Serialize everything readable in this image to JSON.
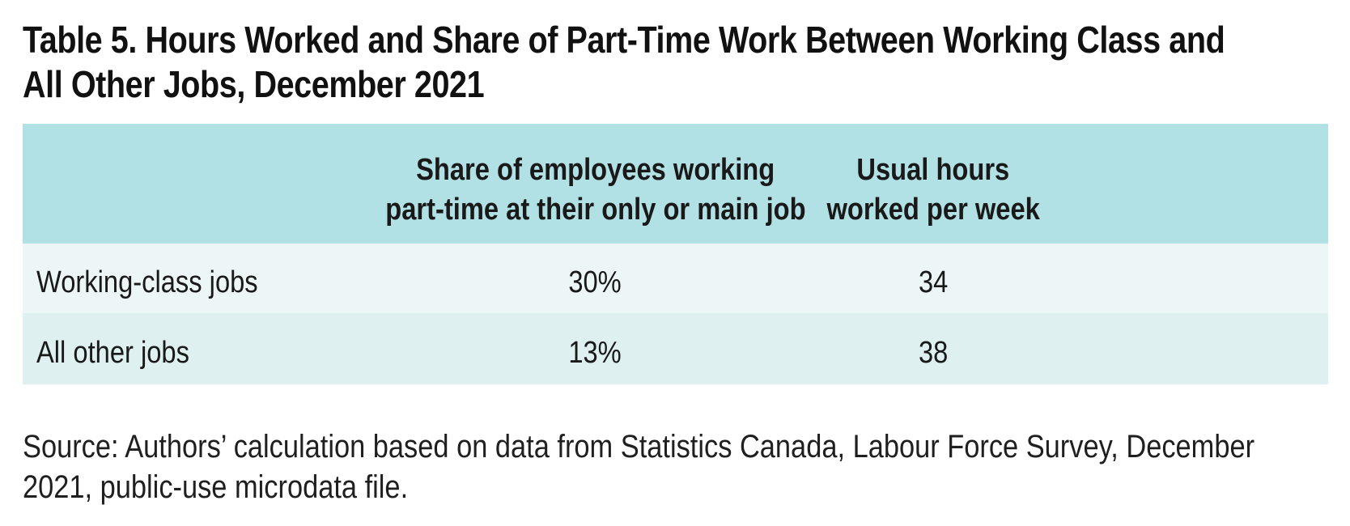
{
  "title": {
    "line1": "Table 5. Hours Worked and Share of Part-Time Work Between Working Class and",
    "line2": "All Other Jobs, December 2021"
  },
  "table": {
    "header": {
      "col_label": "",
      "col_share_line1": "Share of employees working",
      "col_share_line2": "part-time at their only or main job",
      "col_hours_line1": "Usual hours",
      "col_hours_line2": "worked per week"
    },
    "rows": [
      {
        "label": "Working-class jobs",
        "share": "30%",
        "hours": "34"
      },
      {
        "label": "All other jobs",
        "share": "13%",
        "hours": "38"
      }
    ]
  },
  "source": {
    "line1": "Source: Authors’ calculation based on data from Statistics Canada, Labour Force Survey, December",
    "line2": "2021, public-use microdata file."
  },
  "colors": {
    "header_bg": "#b1e1e5",
    "row1_bg": "#edf6f7",
    "row2_bg": "#def0f0",
    "text": "#191919"
  },
  "chart_data": {
    "type": "table",
    "title": "Table 5. Hours Worked and Share of Part-Time Work Between Working Class and All Other Jobs, December 2021",
    "columns": [
      "",
      "Share of employees working part-time at their only or main job",
      "Usual hours worked per week"
    ],
    "rows": [
      [
        "Working-class jobs",
        "30%",
        "34"
      ],
      [
        "All other jobs",
        "13%",
        "38"
      ]
    ],
    "source": "Source: Authors’ calculation based on data from Statistics Canada, Labour Force Survey, December 2021, public-use microdata file."
  }
}
